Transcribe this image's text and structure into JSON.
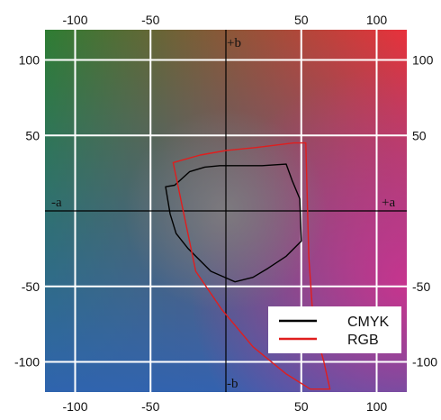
{
  "chart_data": {
    "type": "line",
    "title": "",
    "xlabel": "",
    "ylabel": "",
    "xlim": [
      -120,
      120
    ],
    "ylim": [
      -120,
      120
    ],
    "grid": true,
    "x_ticks": [
      -100,
      -50,
      50,
      100
    ],
    "y_ticks": [
      100,
      50,
      -50,
      -100
    ],
    "x_tick_labels": [
      "-100",
      "-50",
      "50",
      "100"
    ],
    "y_tick_labels": [
      "100",
      "50",
      "-50",
      "-100"
    ],
    "axis_labels": {
      "neg_a": "-a",
      "pos_a": "+a",
      "pos_b": "+b",
      "neg_b": "-b"
    },
    "legend_position": "bottom-right",
    "series": [
      {
        "name": "CMYK",
        "color": "#000000",
        "points": [
          [
            -40,
            16
          ],
          [
            -34,
            17
          ],
          [
            -24,
            26
          ],
          [
            -14,
            29
          ],
          [
            -4,
            30
          ],
          [
            10,
            30
          ],
          [
            24,
            30
          ],
          [
            40,
            31
          ],
          [
            44,
            20
          ],
          [
            49,
            8
          ],
          [
            50,
            -20
          ],
          [
            40,
            -30
          ],
          [
            28,
            -38
          ],
          [
            18,
            -44
          ],
          [
            6,
            -47
          ],
          [
            -10,
            -40
          ],
          [
            -25,
            -25
          ],
          [
            -33,
            -15
          ],
          [
            -37,
            -2
          ],
          [
            -40,
            16
          ]
        ]
      },
      {
        "name": "RGB",
        "color": "#e01e1e",
        "points": [
          [
            -35,
            32
          ],
          [
            -17,
            37
          ],
          [
            0,
            40
          ],
          [
            20,
            42
          ],
          [
            45,
            45
          ],
          [
            53,
            45
          ],
          [
            55,
            -30
          ],
          [
            58,
            -75
          ],
          [
            65,
            -100
          ],
          [
            69,
            -118
          ],
          [
            56,
            -118
          ],
          [
            40,
            -108
          ],
          [
            18,
            -90
          ],
          [
            -3,
            -65
          ],
          [
            -20,
            -40
          ],
          [
            -35,
            32
          ]
        ]
      }
    ],
    "colors": {
      "green": "#2e7d33",
      "red": "#e8313c",
      "blue": "#2f63b5",
      "magenta": "#d62f8e",
      "gray": "#808080",
      "grid": "#ffffff",
      "axis": "#000000"
    }
  }
}
